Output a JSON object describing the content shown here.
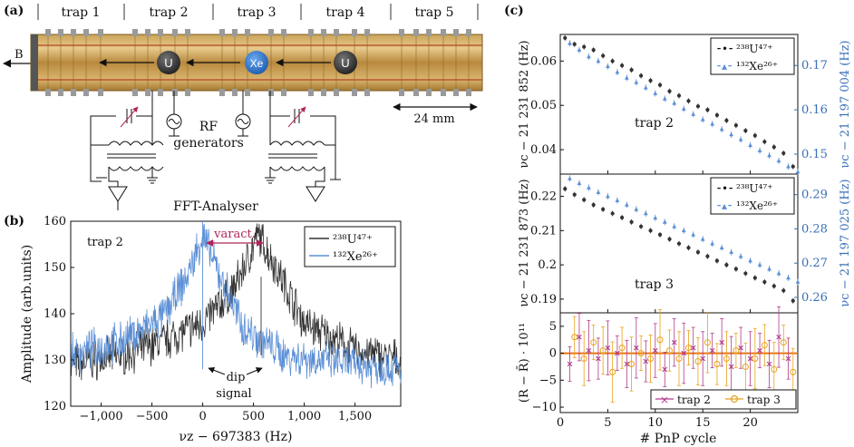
{
  "panel_a": {
    "label": "(a)",
    "traps": [
      "trap 1",
      "trap 2",
      "trap 3",
      "trap 4",
      "trap 5"
    ],
    "b_label": "B",
    "ion_labels": [
      "U",
      "Xe",
      "U"
    ],
    "rf_label": "RF",
    "generators_label": "generators",
    "scale_label": "24 mm",
    "fft_label": "FFT-Analyser"
  },
  "panel_b": {
    "label": "(b)",
    "trap_label": "trap 2",
    "ylabel": "Amplitude (arb.units)",
    "xlabel": "νz − 697383 (Hz)",
    "varact_label": "varact.",
    "dip_label": "dip",
    "signal_label": "signal",
    "legend": [
      {
        "name": "²³⁸U⁴⁷⁺",
        "color": "#333333"
      },
      {
        "name": "¹³²Xe²⁶⁺",
        "color": "#5b8fd6"
      }
    ],
    "xticks": [
      "−1,000",
      "−500",
      "0",
      "500",
      "1,000",
      "1,500"
    ],
    "yticks": [
      "120",
      "130",
      "140",
      "150",
      "160"
    ]
  },
  "panel_c": {
    "label": "(c)",
    "xlabel": "# PnP cycle",
    "xticks": [
      "0",
      "5",
      "10",
      "15",
      "20"
    ],
    "top": {
      "trap_label": "trap 2",
      "ylabel_left": "νc − 21 231 852 (Hz)",
      "ylabel_right": "νc − 21 197 004 (Hz)",
      "yticks_left": [
        "0.04",
        "0.05",
        "0.06"
      ],
      "yticks_right": [
        "0.15",
        "0.16",
        "0.17"
      ]
    },
    "mid": {
      "trap_label": "trap 3",
      "ylabel_left": "νc − 21 231 873 (Hz)",
      "ylabel_right": "νc − 21 197 025 (Hz)",
      "yticks_left": [
        "0.19",
        "0.2",
        "0.21",
        "0.22"
      ],
      "yticks_right": [
        "0.26",
        "0.27",
        "0.28",
        "0.29"
      ]
    },
    "bottom": {
      "ylabel": "(R − R̄) · 10¹¹",
      "yticks": [
        "−10",
        "−5",
        "0",
        "5"
      ],
      "legend": [
        {
          "name": "trap 2",
          "color": "#b03a8c"
        },
        {
          "name": "trap 3",
          "color": "#e8a21a"
        }
      ]
    },
    "legend": [
      {
        "name": "²³⁸U⁴⁷⁺",
        "color": "#333333"
      },
      {
        "name": "¹³²Xe²⁶⁺",
        "color": "#5b8fd6"
      }
    ]
  },
  "chart_data": [
    {
      "type": "line",
      "title": "",
      "xlabel": "νz − 697383 (Hz)",
      "ylabel": "Amplitude (arb.units)",
      "xlim": [
        -1300,
        1950
      ],
      "ylim": [
        120,
        160
      ],
      "series": [
        {
          "name": "²³⁸U⁴⁷⁺",
          "x": [
            -1300,
            -800,
            -400,
            0,
            300,
            550,
            700,
            1000,
            1500,
            1950
          ],
          "values": [
            129,
            131,
            134,
            138,
            145,
            157,
            151,
            138,
            132,
            130
          ]
        },
        {
          "name": "¹³²Xe²⁶⁺",
          "x": [
            -1300,
            -800,
            -400,
            -150,
            0,
            150,
            400,
            800,
            1500,
            1950
          ],
          "values": [
            131,
            134,
            139,
            148,
            157,
            149,
            137,
            131,
            129,
            128
          ]
        }
      ]
    },
    {
      "type": "scatter",
      "title": "",
      "xlabel": "# PnP cycle",
      "ylabel": "νc − 21 231 852 (Hz)",
      "xlim": [
        0,
        25
      ],
      "ylim": [
        0.0345,
        0.066
      ],
      "series": [
        {
          "name": "²³⁸U⁴⁷⁺",
          "x": [
            0.5,
            1.5,
            2.5,
            3.5,
            4.5,
            5.5,
            6.5,
            7.5,
            8.5,
            9.5,
            10.5,
            11.5,
            12.5,
            13.5,
            14.5,
            15.5,
            16.5,
            17.5,
            18.5,
            19.5,
            20.5,
            21.5,
            22.5,
            23.5,
            24.5
          ],
          "values": [
            0.0652,
            0.0638,
            0.0632,
            0.0625,
            0.0612,
            0.06,
            0.059,
            0.058,
            0.0567,
            0.0556,
            0.0546,
            0.0532,
            0.0522,
            0.051,
            0.0498,
            0.049,
            0.0478,
            0.0466,
            0.0455,
            0.0443,
            0.0432,
            0.0418,
            0.0406,
            0.0392,
            0.0362
          ]
        },
        {
          "name": "¹³²Xe²⁶⁺",
          "x": [
            1,
            2,
            3,
            4,
            5,
            6,
            7,
            8,
            9,
            10,
            11,
            12,
            13,
            14,
            15,
            16,
            17,
            18,
            19,
            20,
            21,
            22,
            23,
            24,
            25
          ],
          "values": [
            0.064,
            0.0625,
            0.061,
            0.06,
            0.0588,
            0.0575,
            0.0562,
            0.0552,
            0.054,
            0.0527,
            0.0515,
            0.0505,
            0.0492,
            0.048,
            0.0468,
            0.0458,
            0.0446,
            0.0434,
            0.0423,
            0.041,
            0.0398,
            0.0387,
            0.0375,
            0.0362,
            0.035
          ]
        }
      ]
    },
    {
      "type": "scatter",
      "title": "",
      "xlabel": "# PnP cycle",
      "ylabel": "νc − 21 231 873 (Hz)",
      "xlim": [
        0,
        25
      ],
      "ylim": [
        0.186,
        0.2265
      ],
      "series": [
        {
          "name": "²³⁸U⁴⁷⁺",
          "x": [
            0.5,
            1.5,
            2.5,
            3.5,
            4.5,
            5.5,
            6.5,
            7.5,
            8.5,
            9.5,
            10.5,
            11.5,
            12.5,
            13.5,
            14.5,
            15.5,
            16.5,
            17.5,
            18.5,
            19.5,
            20.5,
            21.5,
            22.5,
            23.5,
            24.5
          ],
          "values": [
            0.2222,
            0.2205,
            0.219,
            0.2175,
            0.2162,
            0.215,
            0.2138,
            0.2125,
            0.2112,
            0.21,
            0.2088,
            0.2075,
            0.2062,
            0.205,
            0.2037,
            0.2025,
            0.2012,
            0.2,
            0.1988,
            0.1975,
            0.1962,
            0.195,
            0.1938,
            0.1925,
            0.1895
          ]
        },
        {
          "name": "¹³²Xe²⁶⁺",
          "x": [
            1,
            2,
            3,
            4,
            5,
            6,
            7,
            8,
            9,
            10,
            11,
            12,
            13,
            14,
            15,
            16,
            17,
            18,
            19,
            20,
            21,
            22,
            23,
            24,
            25
          ],
          "values": [
            0.2252,
            0.2238,
            0.2225,
            0.2212,
            0.22,
            0.2188,
            0.2175,
            0.2162,
            0.215,
            0.2137,
            0.2125,
            0.2112,
            0.21,
            0.2088,
            0.2075,
            0.2062,
            0.205,
            0.2037,
            0.2025,
            0.2012,
            0.2,
            0.1988,
            0.1975,
            0.1962,
            0.195
          ]
        }
      ]
    },
    {
      "type": "scatter",
      "title": "",
      "xlabel": "# PnP cycle",
      "ylabel": "(R − R̄) · 10¹¹",
      "xlim": [
        0,
        25
      ],
      "ylim": [
        -11,
        7.5
      ],
      "series": [
        {
          "name": "trap 2",
          "x": [
            1,
            2,
            3,
            4,
            5,
            6,
            7,
            8,
            9,
            10,
            11,
            12,
            13,
            14,
            15,
            16,
            17,
            18,
            19,
            20,
            21,
            22,
            23,
            24
          ],
          "values": [
            -2,
            3,
            0.5,
            -1,
            1,
            0,
            -2,
            1,
            -1.5,
            0.5,
            -3,
            2,
            0,
            1,
            -1,
            0.5,
            2,
            -2.5,
            1,
            -1,
            0.5,
            -2,
            3,
            -1
          ]
        },
        {
          "name": "trap 3",
          "x": [
            1.5,
            2.5,
            3.5,
            4.5,
            5.5,
            6.5,
            7.5,
            8.5,
            9.5,
            10.5,
            11.5,
            12.5,
            13.5,
            14.5,
            15.5,
            16.5,
            17.5,
            18.5,
            19.5,
            20.5,
            21.5,
            22.5,
            23.5,
            24.5
          ],
          "values": [
            3,
            -1,
            2,
            0.5,
            -3.5,
            1,
            -2,
            0,
            -1,
            2.5,
            0.5,
            -1,
            1,
            -1.5,
            2,
            -2,
            -1,
            0.5,
            -2.5,
            -1,
            1.5,
            -3,
            2,
            -3.5
          ]
        }
      ]
    }
  ]
}
